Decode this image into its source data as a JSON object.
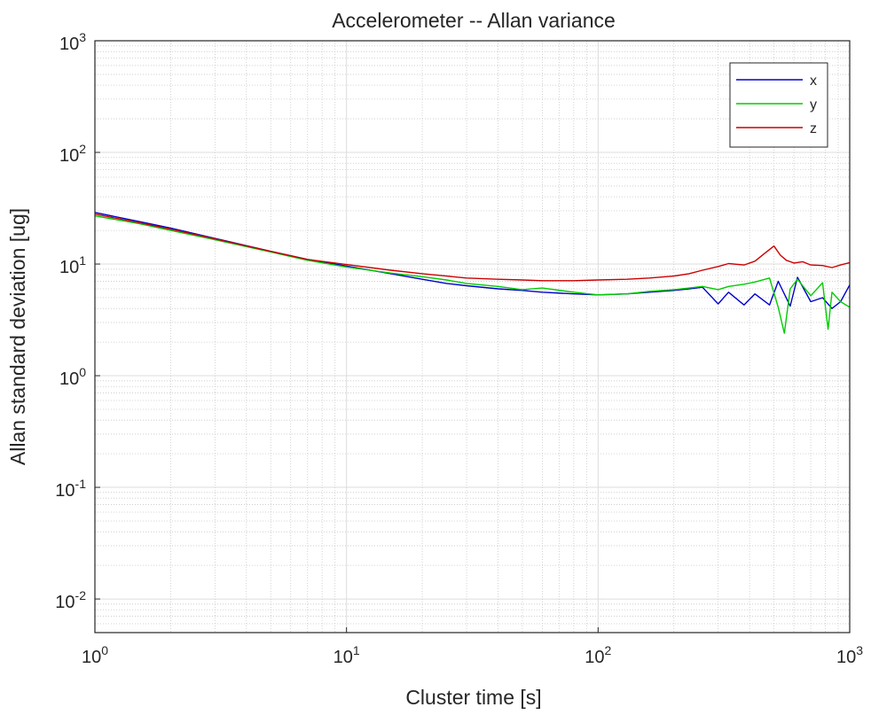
{
  "chart_data": {
    "type": "line",
    "title": "Accelerometer -- Allan variance",
    "xlabel": "Cluster time [s]",
    "ylabel": "Allan standard deviation [ug]",
    "xscale": "log",
    "yscale": "log",
    "xlim": [
      1,
      1000
    ],
    "ylim": [
      0.005,
      1000
    ],
    "x_ticks": [
      {
        "value": 1,
        "base": "10",
        "exp": "0"
      },
      {
        "value": 10,
        "base": "10",
        "exp": "1"
      },
      {
        "value": 100,
        "base": "10",
        "exp": "2"
      },
      {
        "value": 1000,
        "base": "10",
        "exp": "3"
      }
    ],
    "y_ticks": [
      {
        "value": 0.01,
        "base": "10",
        "exp": "-2"
      },
      {
        "value": 0.1,
        "base": "10",
        "exp": "-1"
      },
      {
        "value": 1,
        "base": "10",
        "exp": "0"
      },
      {
        "value": 10,
        "base": "10",
        "exp": "1"
      },
      {
        "value": 100,
        "base": "10",
        "exp": "2"
      },
      {
        "value": 1000,
        "base": "10",
        "exp": "3"
      }
    ],
    "grid": true,
    "minor_grid": true,
    "legend_position": "top-right",
    "series": [
      {
        "name": "x",
        "color": "#0000cc",
        "x": [
          1,
          1.5,
          2,
          3,
          5,
          7,
          10,
          15,
          20,
          25,
          30,
          40,
          50,
          60,
          80,
          100,
          130,
          160,
          200,
          230,
          260,
          300,
          330,
          380,
          420,
          480,
          520,
          580,
          620,
          700,
          780,
          850,
          920,
          1000
        ],
        "y": [
          29,
          24,
          21,
          17,
          13,
          11,
          9.6,
          8.2,
          7.3,
          6.7,
          6.4,
          6.0,
          5.8,
          5.6,
          5.4,
          5.3,
          5.4,
          5.6,
          5.8,
          6.0,
          6.2,
          4.4,
          5.6,
          4.3,
          5.4,
          4.3,
          7.0,
          4.2,
          7.6,
          4.6,
          5.0,
          4.0,
          4.6,
          6.5
        ]
      },
      {
        "name": "y",
        "color": "#00cc00",
        "x": [
          1,
          1.5,
          2,
          3,
          5,
          7,
          10,
          15,
          20,
          25,
          30,
          40,
          50,
          60,
          80,
          100,
          130,
          160,
          200,
          230,
          260,
          300,
          330,
          380,
          420,
          480,
          520,
          550,
          580,
          620,
          700,
          780,
          820,
          850,
          920,
          1000
        ],
        "y": [
          27,
          23,
          20,
          16.5,
          12.8,
          10.8,
          9.4,
          8.3,
          7.7,
          7.2,
          6.7,
          6.3,
          5.9,
          6.1,
          5.6,
          5.3,
          5.4,
          5.7,
          5.9,
          6.1,
          6.3,
          5.9,
          6.3,
          6.6,
          6.9,
          7.5,
          4.1,
          2.4,
          6.0,
          7.3,
          5.2,
          6.8,
          2.6,
          5.6,
          4.6,
          4.1
        ]
      },
      {
        "name": "z",
        "color": "#cc0000",
        "x": [
          1,
          1.5,
          2,
          3,
          5,
          7,
          10,
          15,
          20,
          25,
          30,
          40,
          50,
          60,
          80,
          100,
          130,
          160,
          200,
          230,
          260,
          300,
          330,
          380,
          420,
          460,
          500,
          530,
          560,
          600,
          650,
          700,
          780,
          850,
          920,
          1000
        ],
        "y": [
          28,
          23.5,
          20.5,
          16.8,
          13,
          11,
          9.9,
          8.8,
          8.2,
          7.8,
          7.5,
          7.3,
          7.2,
          7.1,
          7.1,
          7.2,
          7.3,
          7.5,
          7.8,
          8.2,
          8.8,
          9.5,
          10.1,
          9.8,
          10.6,
          12.5,
          14.5,
          12.0,
          10.8,
          10.2,
          10.5,
          9.8,
          9.7,
          9.3,
          9.8,
          10.3
        ]
      }
    ]
  }
}
